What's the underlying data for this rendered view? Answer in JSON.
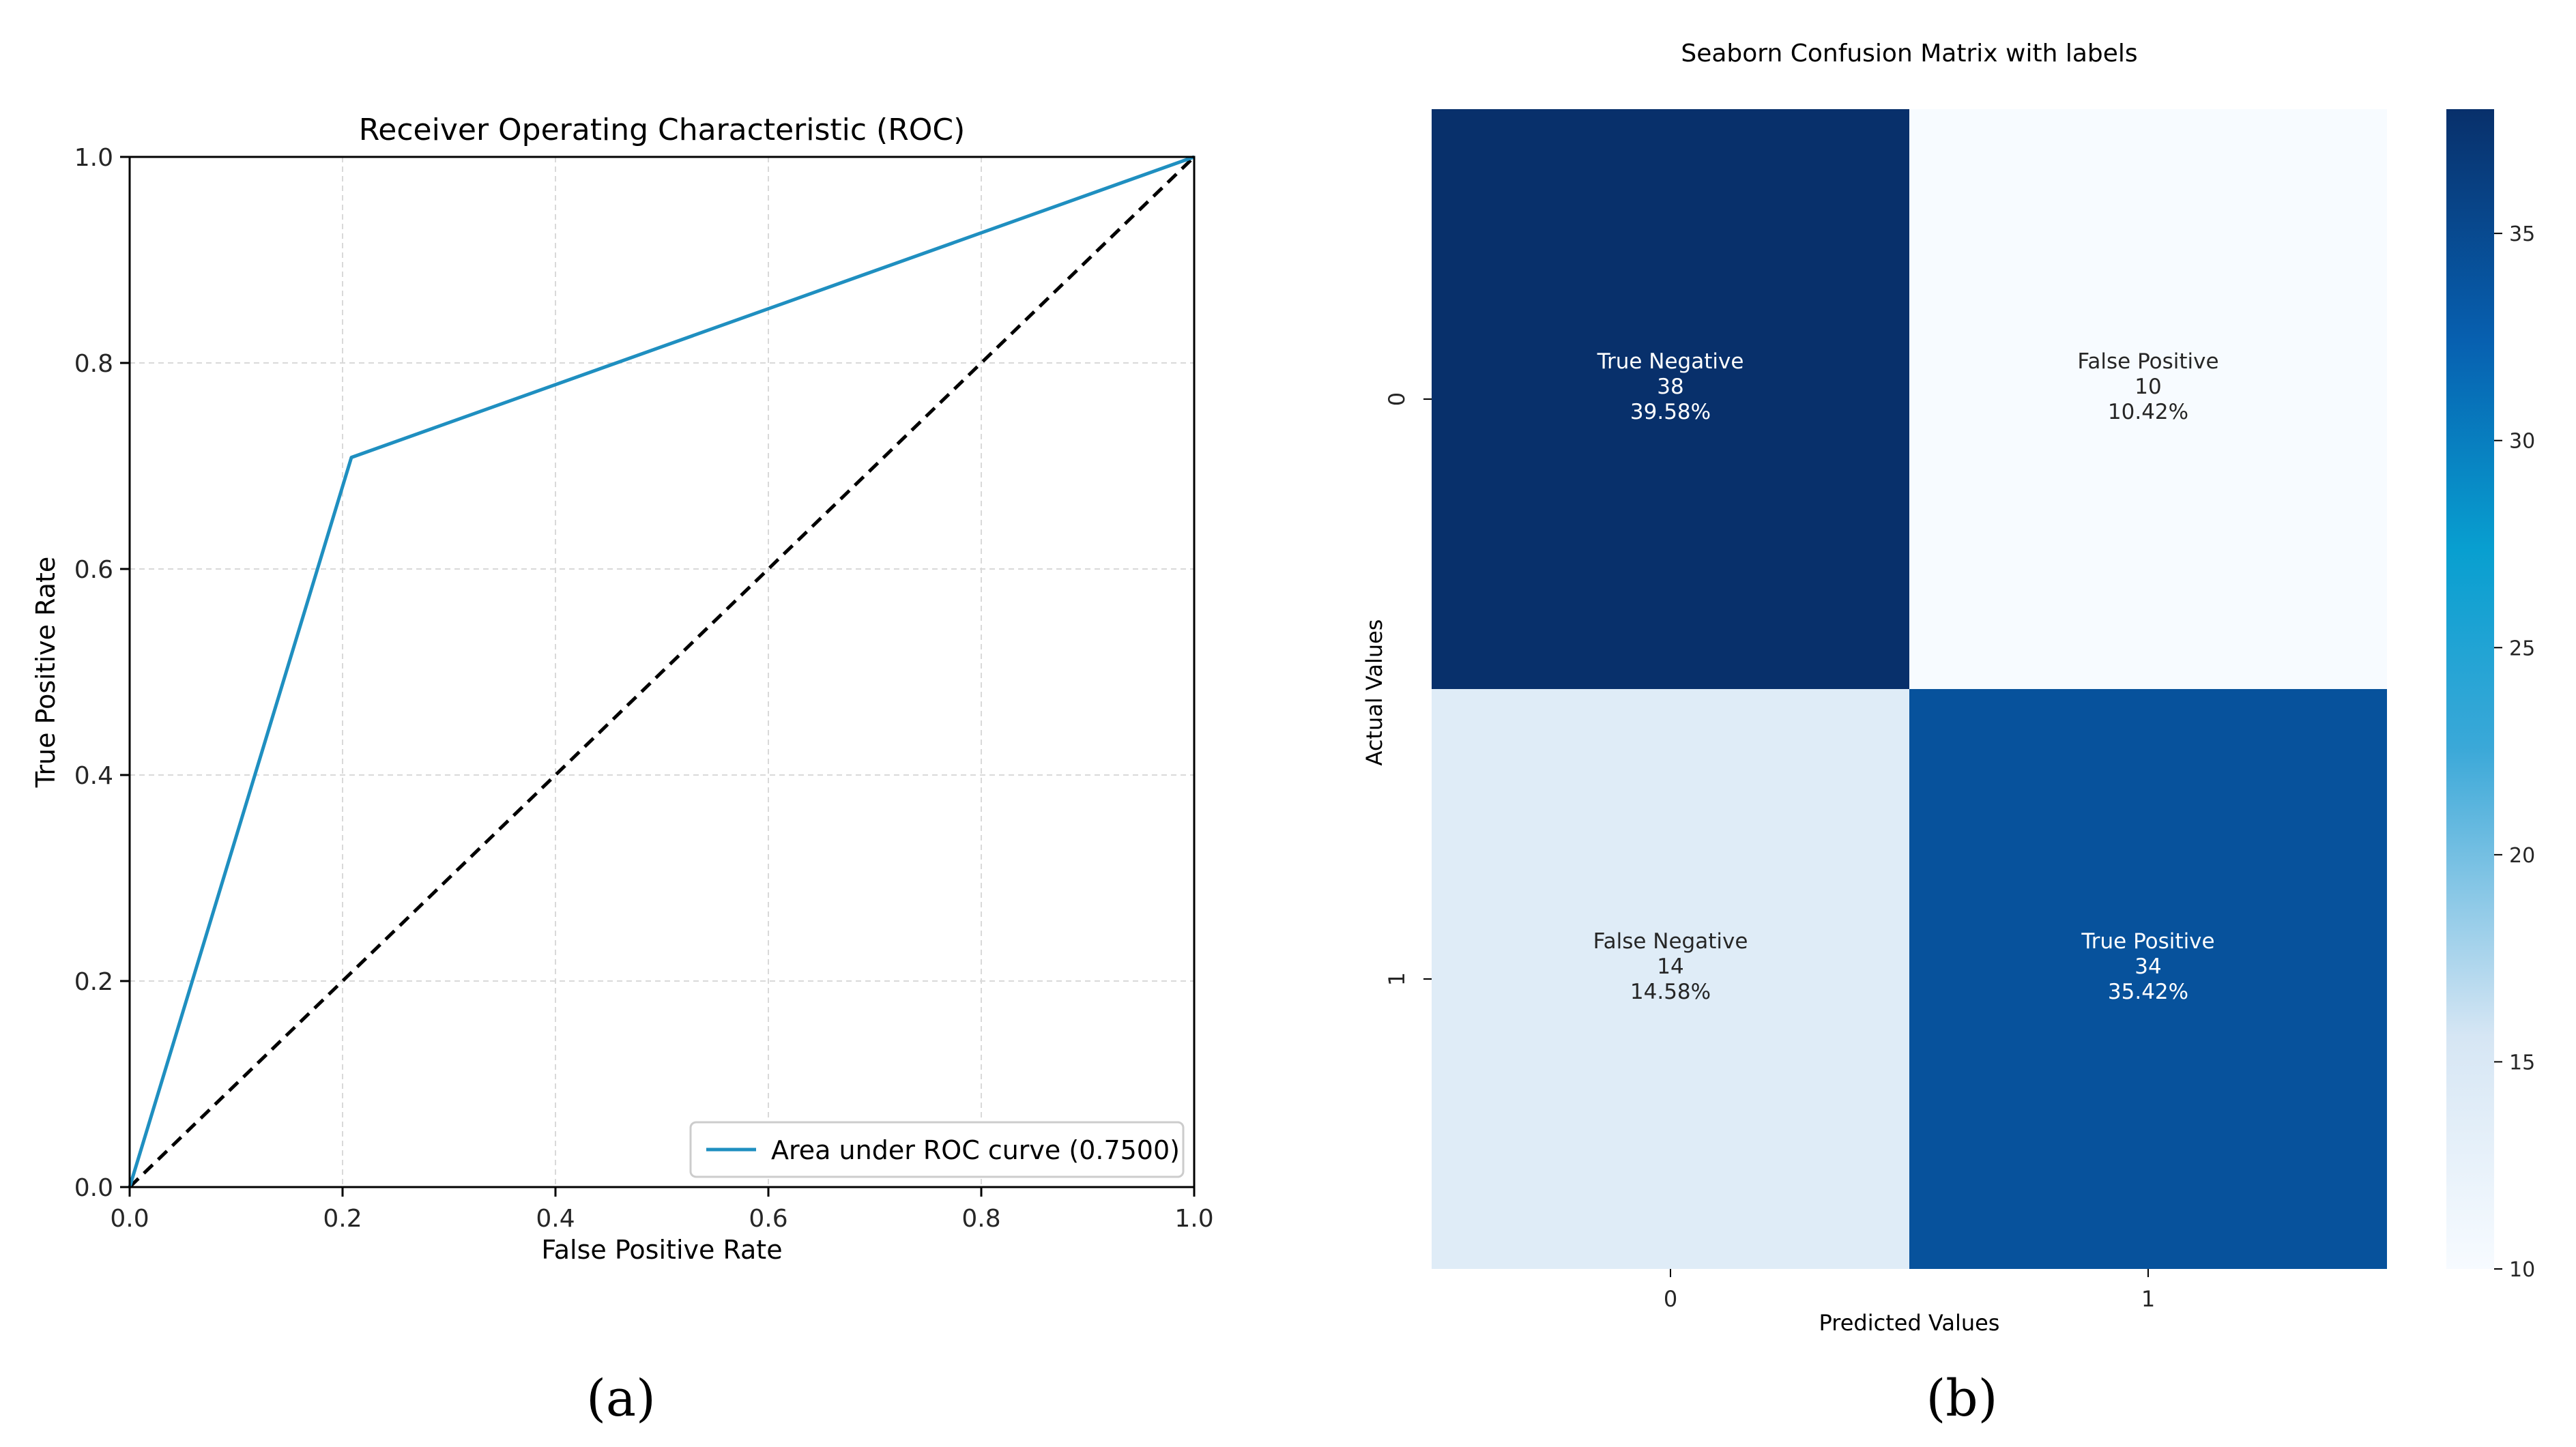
{
  "colors": {
    "roc_line": "#1f8fc0",
    "chance_line": "#000000",
    "grid": "#d9d9d9",
    "axis": "#000000",
    "text": "#262626",
    "heatmap_low": "#f7fbff",
    "heatmap_high": "#08306b"
  },
  "chart_data": [
    {
      "type": "line",
      "title": "Receiver Operating Characteristic (ROC)",
      "xlabel": "False Positive Rate",
      "ylabel": "True Positive Rate",
      "xlim": [
        0.0,
        1.0
      ],
      "ylim": [
        0.0,
        1.0
      ],
      "xticks": [
        "0.0",
        "0.2",
        "0.4",
        "0.6",
        "0.8",
        "1.0"
      ],
      "yticks": [
        "0.0",
        "0.2",
        "0.4",
        "0.6",
        "0.8",
        "1.0"
      ],
      "grid": true,
      "legend_position": "lower-right",
      "series": [
        {
          "name": "Area under ROC curve (0.7500)",
          "x": [
            0.0,
            0.2083,
            1.0
          ],
          "y": [
            0.0,
            0.7083,
            1.0
          ],
          "style": "solid"
        },
        {
          "x": [
            0.0,
            1.0
          ],
          "y": [
            0.0,
            1.0
          ],
          "style": "dashed"
        }
      ],
      "caption": "(a)"
    },
    {
      "type": "heatmap",
      "title": "Seaborn Confusion Matrix with labels",
      "xlabel": "Predicted Values",
      "ylabel": "Actual Values",
      "x_categories": [
        "0",
        "1"
      ],
      "y_categories": [
        "0",
        "1"
      ],
      "cells": [
        [
          {
            "label": "True Negative",
            "count": "38",
            "percent": "39.58%",
            "value": 38
          },
          {
            "label": "False Positive",
            "count": "10",
            "percent": "10.42%",
            "value": 10
          }
        ],
        [
          {
            "label": "False Negative",
            "count": "14",
            "percent": "14.58%",
            "value": 14
          },
          {
            "label": "True Positive",
            "count": "34",
            "percent": "35.42%",
            "value": 34
          }
        ]
      ],
      "colorbar": {
        "vmin": 10,
        "vmax": 38,
        "ticks": [
          "10",
          "15",
          "20",
          "25",
          "30",
          "35"
        ]
      },
      "caption": "(b)"
    }
  ]
}
